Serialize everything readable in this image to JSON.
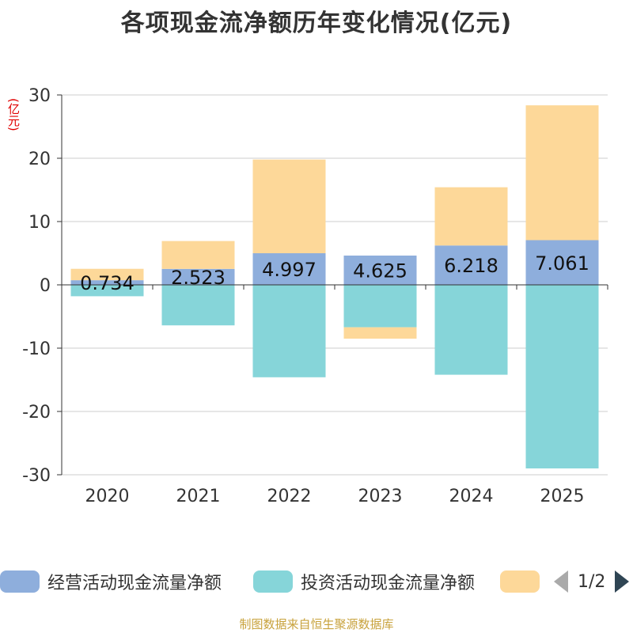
{
  "title": "各项现金流净额历年变化情况(亿元)",
  "y_unit": "(亿元)",
  "source": "制图数据来自恒生聚源数据库",
  "legend_pager": "1/2",
  "colors": {
    "operating": "#8eaedc",
    "investing": "#86d5d9",
    "financing": "#fdd899",
    "axis": "#333333",
    "grid": "#cccccc"
  },
  "chart_data": {
    "type": "bar",
    "stacked": true,
    "title": "各项现金流净额历年变化情况(亿元)",
    "ylabel": "(亿元)",
    "xlabel": "",
    "ylim": [
      -30,
      30
    ],
    "yticks": [
      30,
      20,
      10,
      0,
      -10,
      -20,
      -30
    ],
    "categories": [
      "2020",
      "2021",
      "2022",
      "2023",
      "2024",
      "2025"
    ],
    "series": [
      {
        "name": "经营活动现金流量净额",
        "color_key": "operating",
        "values": [
          0.734,
          2.523,
          4.997,
          4.625,
          6.218,
          7.061
        ],
        "labels": [
          "0.734",
          "2.523",
          "4.997",
          "4.625",
          "6.218",
          "7.061"
        ]
      },
      {
        "name": "投资活动现金流量净额",
        "color_key": "investing",
        "values": [
          -1.8,
          -6.4,
          -14.6,
          -6.7,
          -14.2,
          -29.0
        ]
      },
      {
        "name": "",
        "color_key": "financing",
        "values": [
          1.8,
          4.4,
          14.8,
          -1.8,
          9.2,
          21.3
        ]
      }
    ]
  }
}
